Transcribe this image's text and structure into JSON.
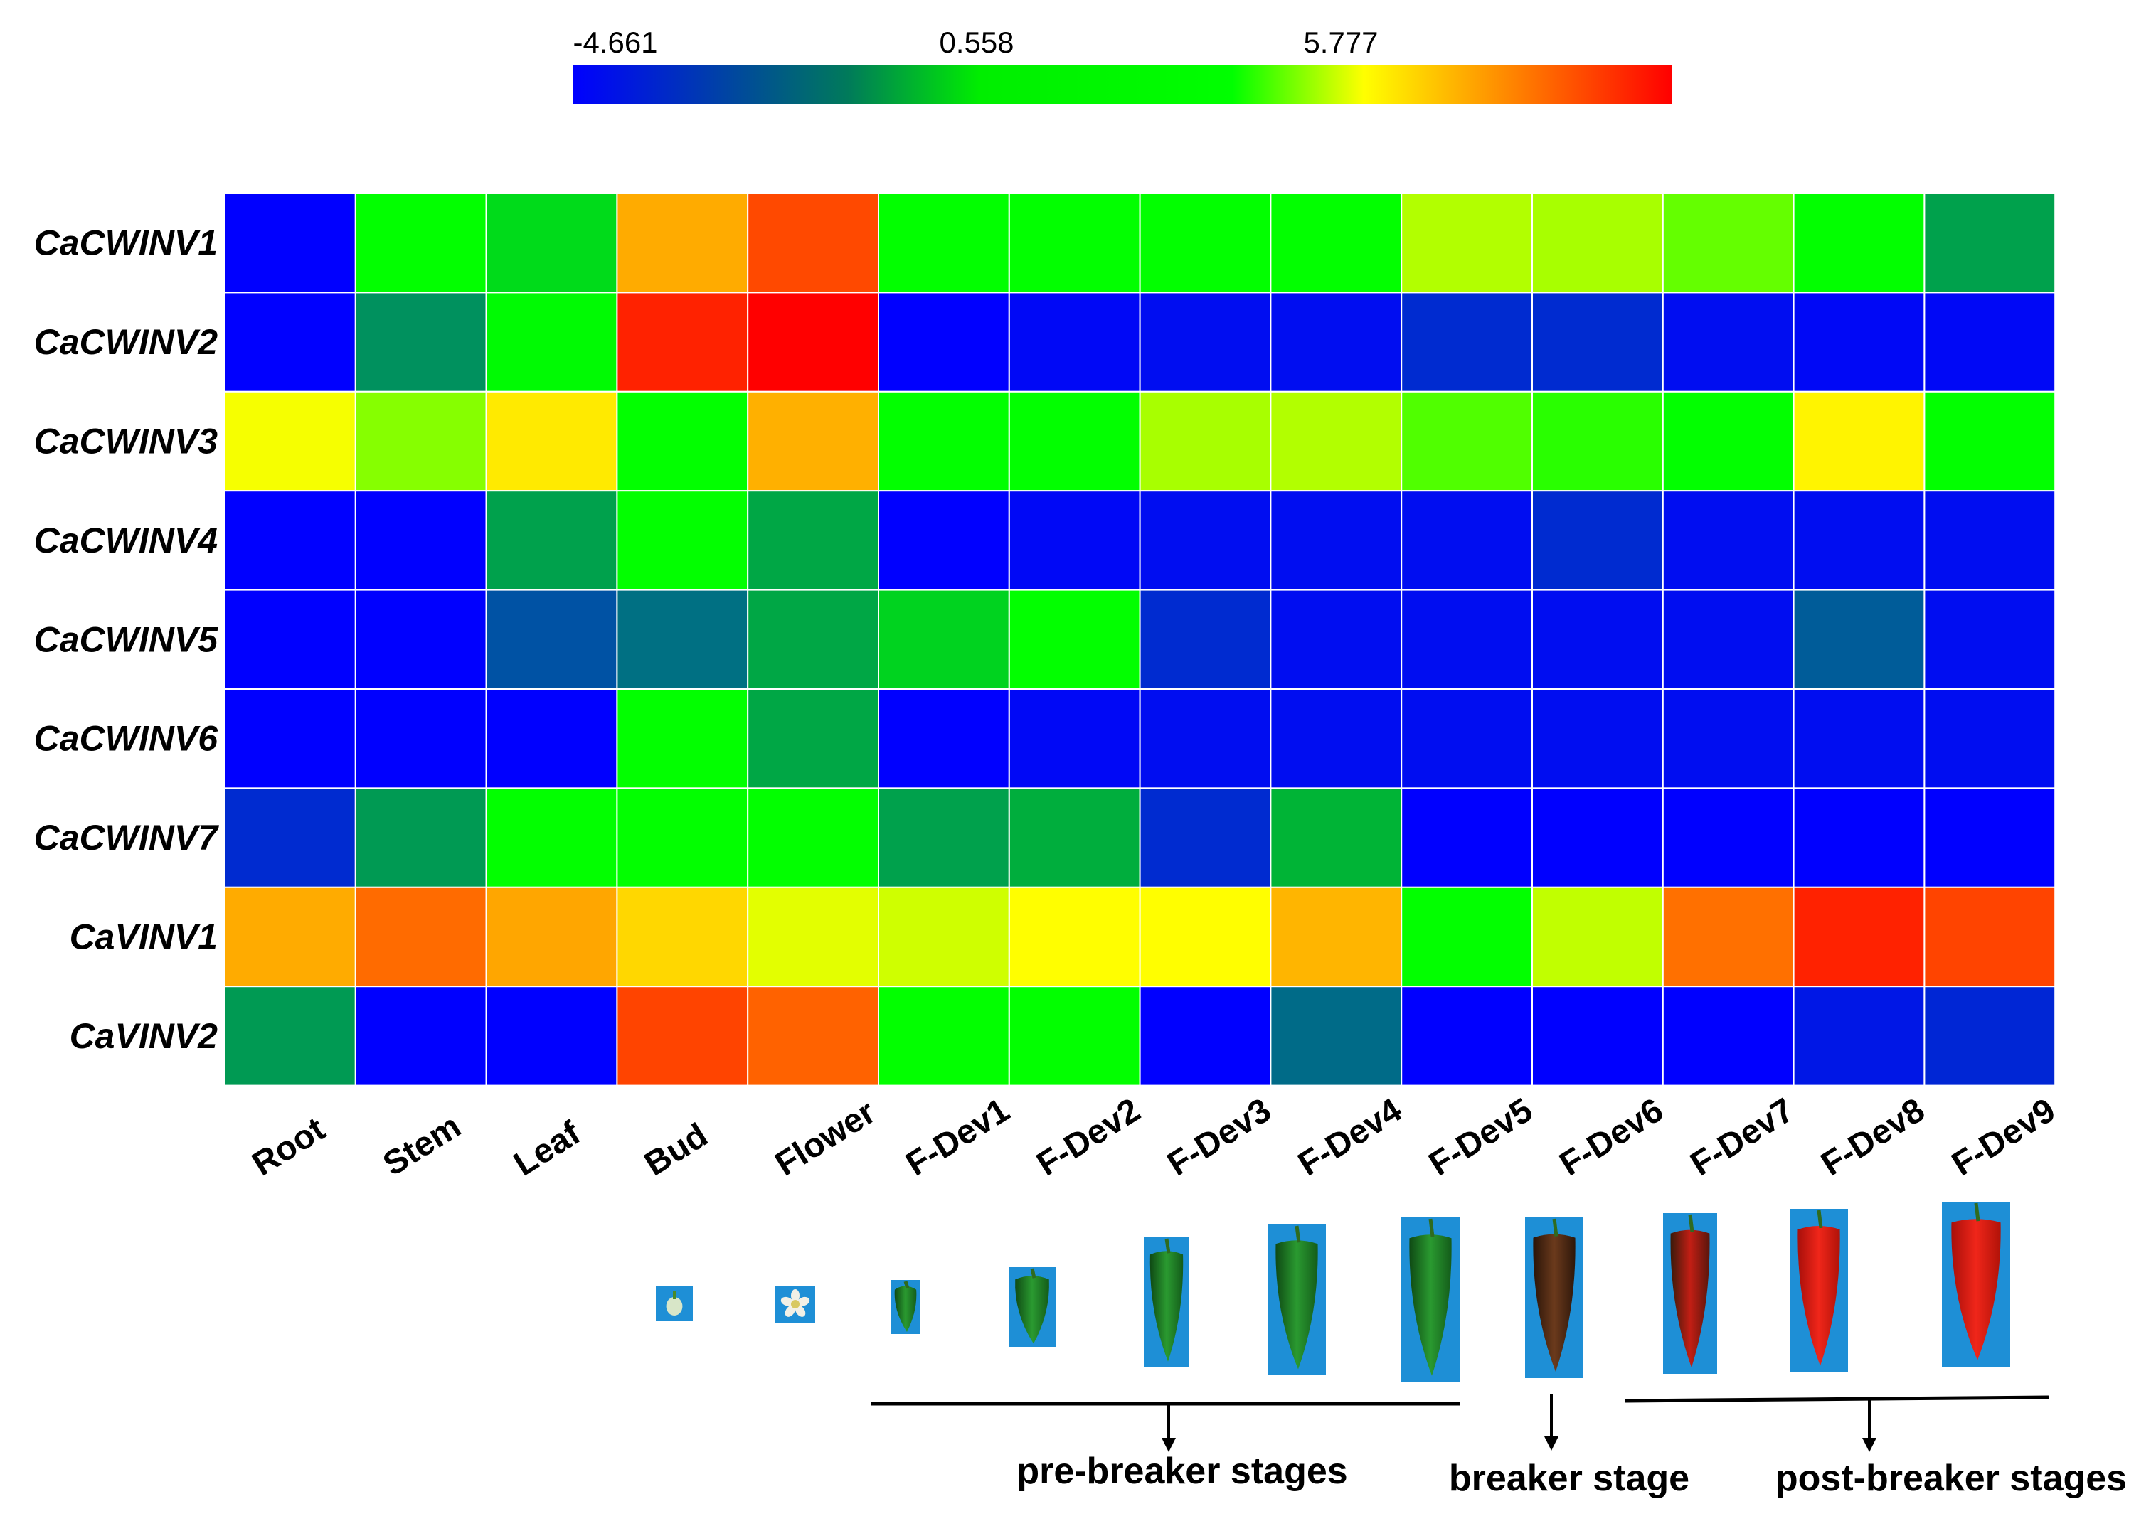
{
  "chart_data": {
    "type": "heatmap",
    "colorbar": {
      "tick_labels": [
        "-4.661",
        "0.558",
        "5.777"
      ],
      "ticks": [
        -4.661,
        0.558,
        5.777
      ],
      "range": [
        -4.661,
        11
      ],
      "stops": [
        "#0000ff",
        "#00ff00",
        "#ffff00",
        "#ff0000"
      ]
    },
    "rows": [
      "CaCWINV1",
      "CaCWINV2",
      "CaCWINV3",
      "CaCWINV4",
      "CaCWINV5",
      "CaCWINV6",
      "CaCWINV7",
      "CaVINV1",
      "CaVINV2"
    ],
    "columns": [
      "Root",
      "Stem",
      "Leaf",
      "Bud",
      "Flower",
      "F-Dev1",
      "F-Dev2",
      "F-Dev3",
      "F-Dev4",
      "F-Dev5",
      "F-Dev6",
      "F-Dev7",
      "F-Dev8",
      "F-Dev9"
    ],
    "values": [
      [
        -4.66,
        0.6,
        0.1,
        7.5,
        9.5,
        0.6,
        0.6,
        0.6,
        0.6,
        4.2,
        4.0,
        2.6,
        0.6,
        -1.0
      ],
      [
        -4.66,
        -1.5,
        0.5,
        10.3,
        11.0,
        -4.66,
        -4.5,
        -4.4,
        -4.4,
        -3.8,
        -3.8,
        -4.4,
        -4.5,
        -4.5
      ],
      [
        5.6,
        3.3,
        6.2,
        0.6,
        7.4,
        0.6,
        0.6,
        4.0,
        4.2,
        2.2,
        1.4,
        0.6,
        6.0,
        0.6
      ],
      [
        -4.66,
        -4.66,
        -1.0,
        0.6,
        -0.8,
        -4.66,
        -4.5,
        -4.4,
        -4.4,
        -4.4,
        -3.8,
        -4.4,
        -4.4,
        -4.4
      ],
      [
        -4.66,
        -4.66,
        -3.0,
        -2.4,
        -0.8,
        0.0,
        0.6,
        -3.8,
        -4.4,
        -4.4,
        -4.4,
        -4.4,
        -2.8,
        -4.4
      ],
      [
        -4.66,
        -4.66,
        -4.66,
        0.6,
        -0.8,
        -4.66,
        -4.5,
        -4.4,
        -4.4,
        -4.4,
        -4.4,
        -4.4,
        -4.4,
        -4.4
      ],
      [
        -3.8,
        -1.2,
        0.6,
        0.6,
        0.6,
        -1.0,
        -0.6,
        -3.8,
        -0.4,
        -4.66,
        -4.66,
        -4.66,
        -4.66,
        -4.66
      ],
      [
        7.5,
        8.8,
        7.6,
        6.6,
        5.2,
        4.8,
        5.8,
        5.8,
        7.3,
        0.6,
        4.5,
        8.7,
        10.3,
        9.6
      ],
      [
        -1.2,
        -4.66,
        -4.66,
        9.6,
        9.0,
        0.6,
        0.6,
        -4.66,
        -2.5,
        -4.66,
        -4.66,
        -4.66,
        -4.2,
        -3.9
      ]
    ],
    "annotations": {
      "groups": [
        "pre-breaker stages",
        "breaker stage",
        "post-breaker stages"
      ]
    },
    "photos": [
      {
        "column": "Bud",
        "kind": "bud"
      },
      {
        "column": "Flower",
        "kind": "flower"
      },
      {
        "column": "F-Dev1",
        "kind": "green"
      },
      {
        "column": "F-Dev2",
        "kind": "green"
      },
      {
        "column": "F-Dev3",
        "kind": "green"
      },
      {
        "column": "F-Dev4",
        "kind": "green"
      },
      {
        "column": "F-Dev5",
        "kind": "green"
      },
      {
        "column": "F-Dev6",
        "kind": "breaker"
      },
      {
        "column": "F-Dev7",
        "kind": "turning"
      },
      {
        "column": "F-Dev8",
        "kind": "red"
      },
      {
        "column": "F-Dev9",
        "kind": "red"
      }
    ]
  }
}
